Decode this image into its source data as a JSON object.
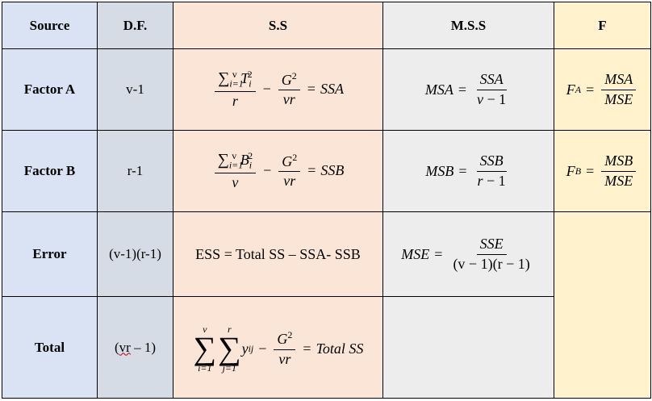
{
  "headers": {
    "source": "Source",
    "df": "D.F.",
    "ss": "S.S",
    "mss": "M.S.S",
    "f": "F"
  },
  "rows": [
    {
      "source": "Factor A",
      "df": "v-1"
    },
    {
      "source": "Factor B",
      "df": "r-1"
    },
    {
      "source": "Error",
      "df": "(v-1)(r-1)",
      "ss_text": "ESS = Total SS – SSA- SSB"
    },
    {
      "source": "Total",
      "df_main": "vr",
      "df_rest": " – 1)",
      "df_open": "("
    }
  ],
  "colors": {
    "source": "#dae3f3",
    "df": "#d6dce5",
    "ss": "#fbe5d6",
    "mss": "#ededed",
    "f": "#fff2cc",
    "spell_underline": "#c00000"
  }
}
